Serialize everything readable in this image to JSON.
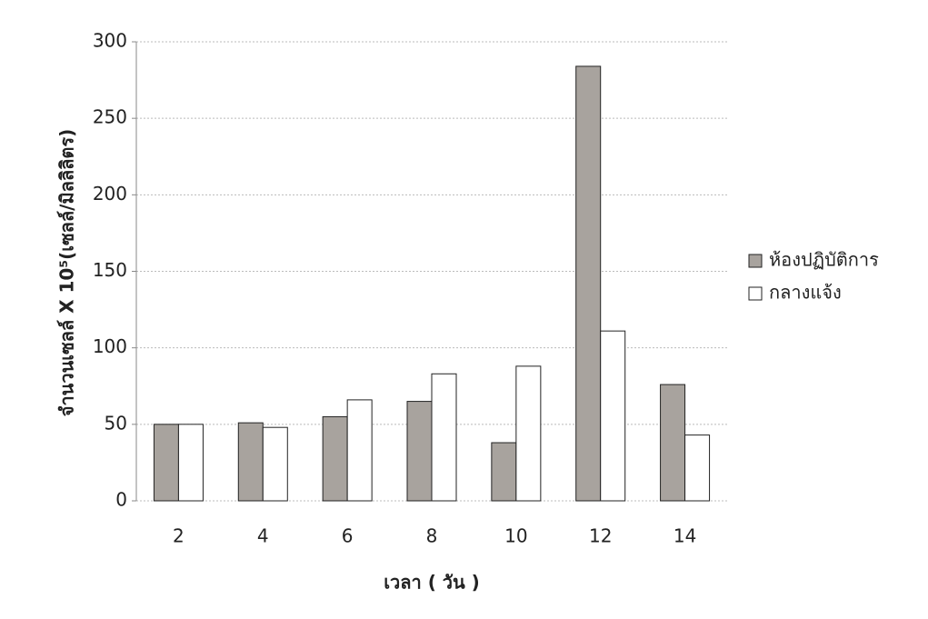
{
  "chart_data": {
    "type": "bar",
    "y_label": "จำนวนเซลล์ X 10⁵(เซลล์/มิลลิลิตร)",
    "x_label": "เวลา ( วัน )",
    "categories": [
      "2",
      "4",
      "6",
      "8",
      "10",
      "12",
      "14"
    ],
    "series": [
      {
        "name": "ห้องปฏิบัติการ",
        "color": "#a8a39e",
        "values": [
          50,
          51,
          55,
          65,
          38,
          284,
          76
        ]
      },
      {
        "name": "กลางแจ้ง",
        "color": "#ffffff",
        "values": [
          50,
          48,
          66,
          83,
          88,
          111,
          43
        ]
      }
    ],
    "ylim": [
      0,
      300
    ],
    "yticks": [
      0,
      50,
      100,
      150,
      200,
      250,
      300
    ],
    "grid": true,
    "legend": "right"
  }
}
